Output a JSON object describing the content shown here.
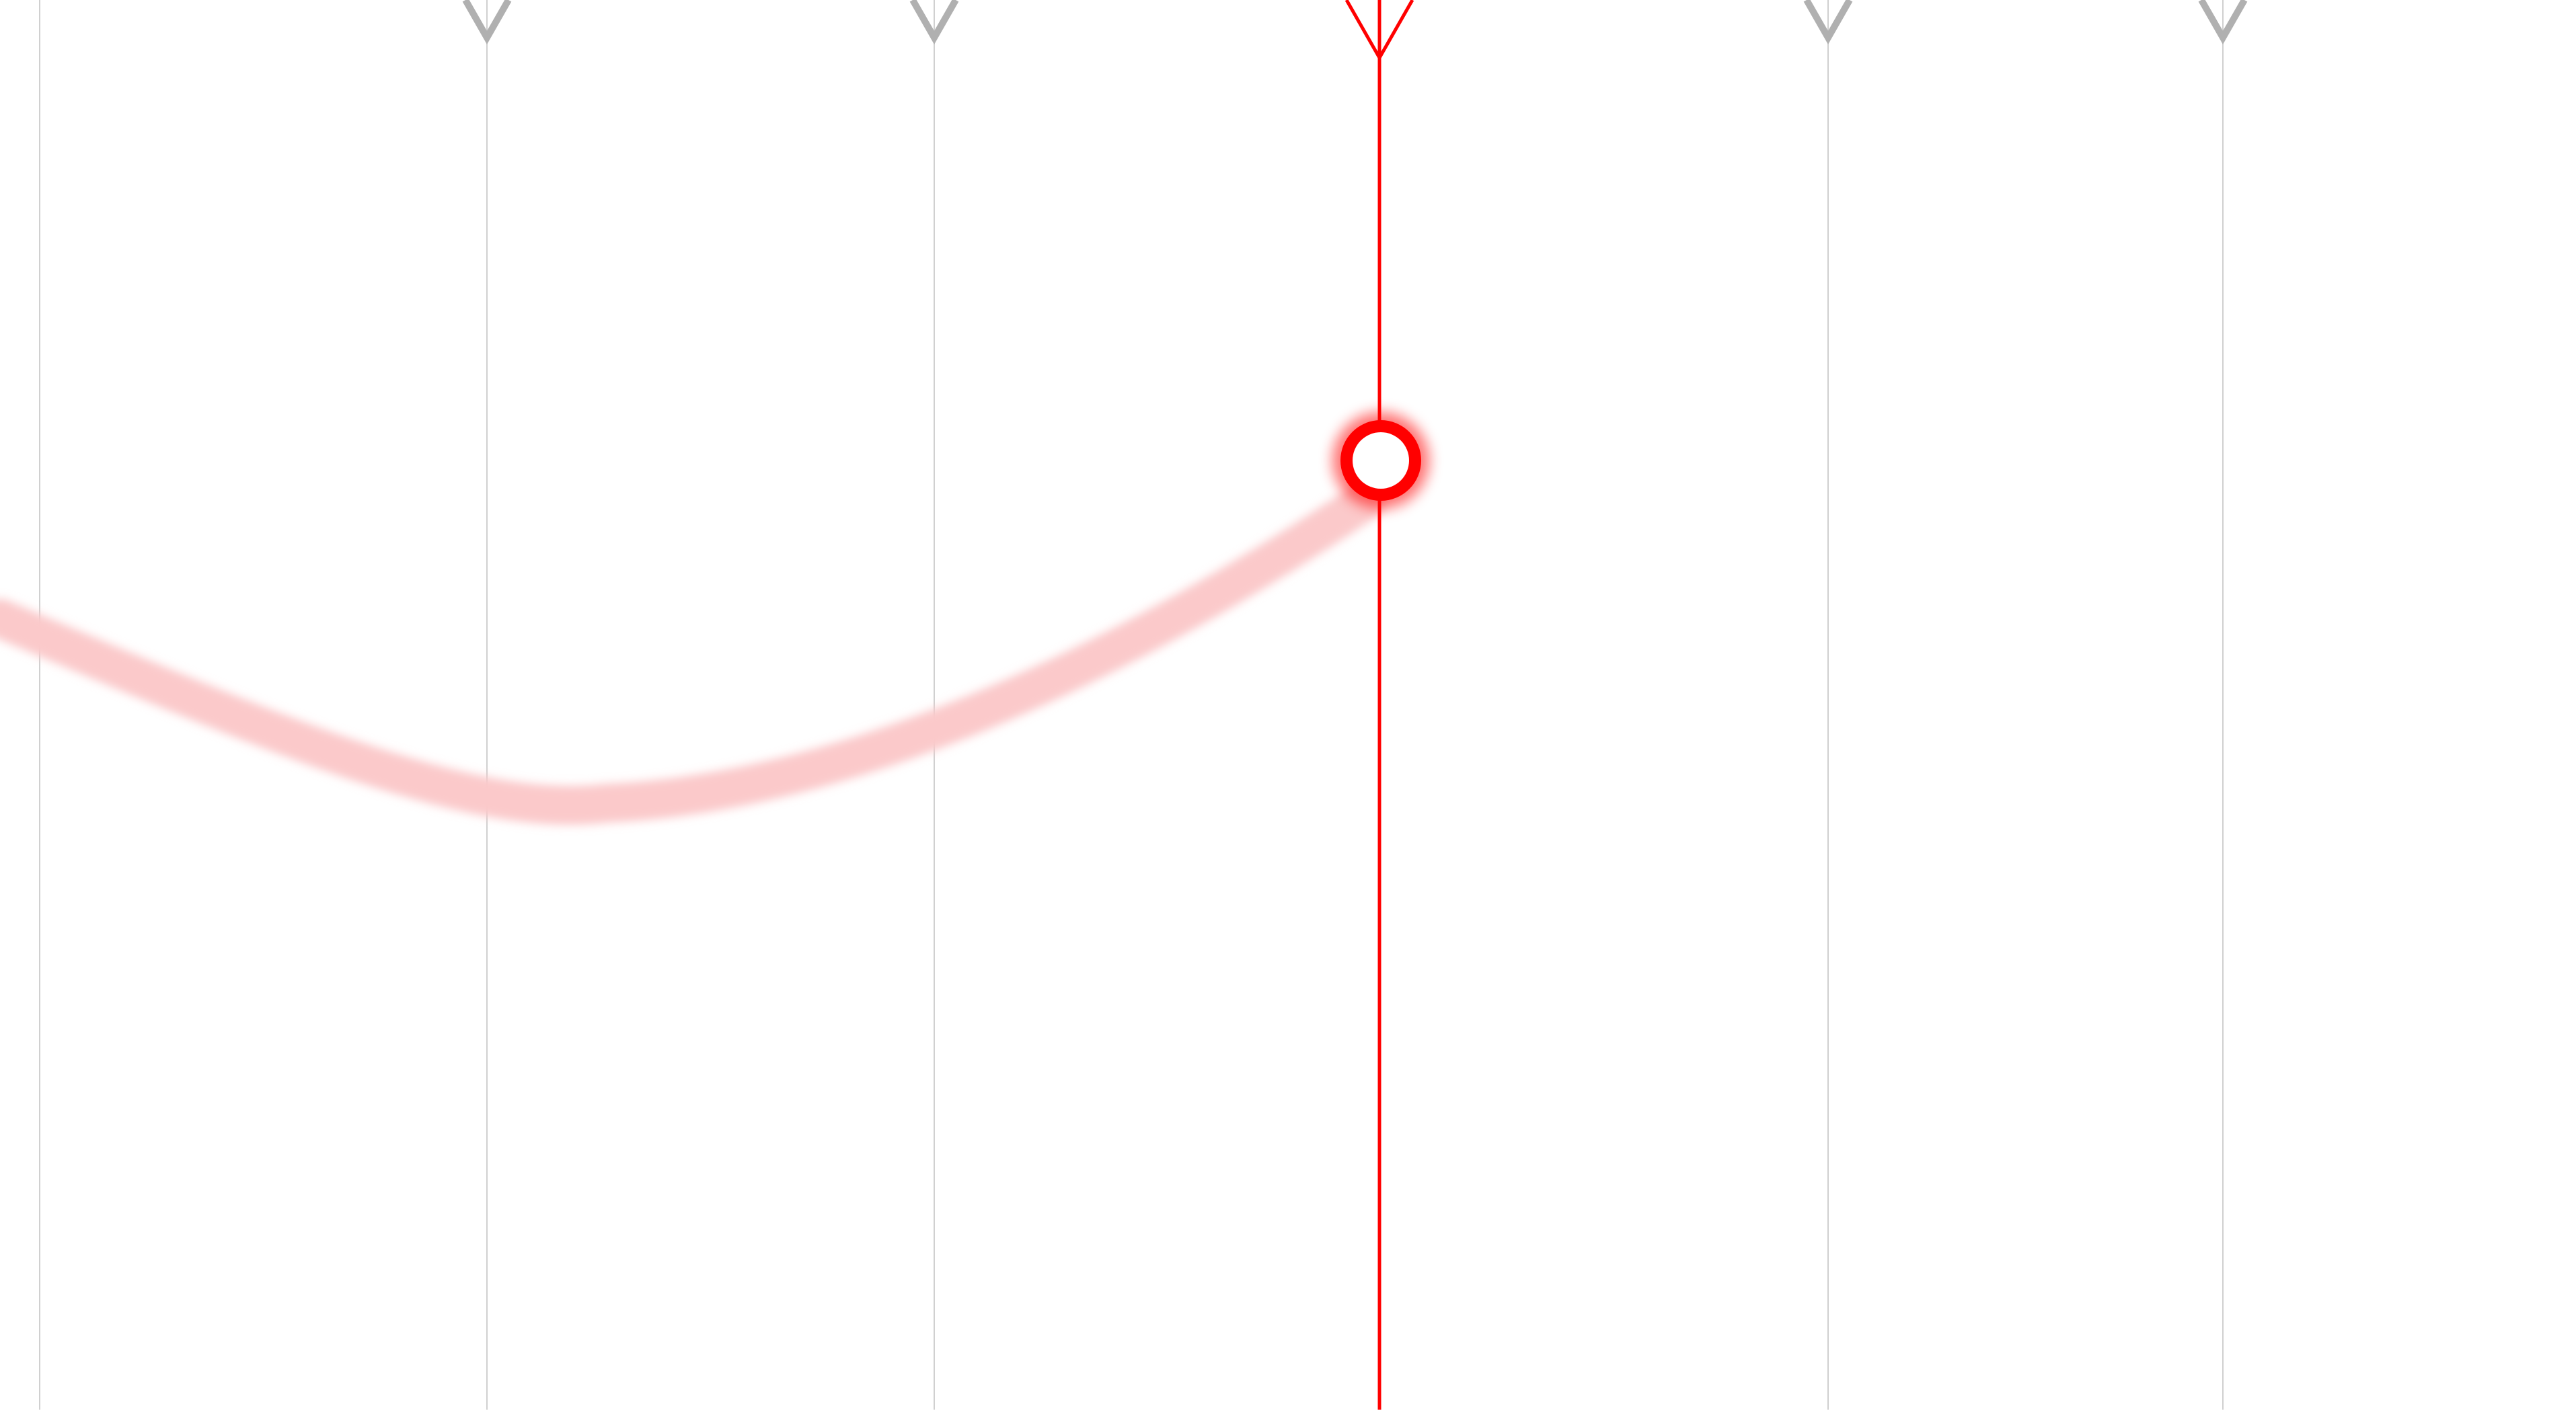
{
  "colors": {
    "background": "#ffffff",
    "grid_line": "#d0d0d0",
    "marker_inactive": "#b0b0b0",
    "active": "#ff0000",
    "trail": "#fbc9ca",
    "handle_fill": "#ffffff"
  },
  "timeline": {
    "markers": [
      {
        "name": "marker-1",
        "active": false
      },
      {
        "name": "marker-2",
        "active": false
      },
      {
        "name": "marker-3",
        "active": true
      },
      {
        "name": "marker-4",
        "active": false
      },
      {
        "name": "marker-5",
        "active": false
      }
    ]
  },
  "icons": {
    "marker": "chevron-down-icon",
    "handle": "circle-handle-icon"
  }
}
